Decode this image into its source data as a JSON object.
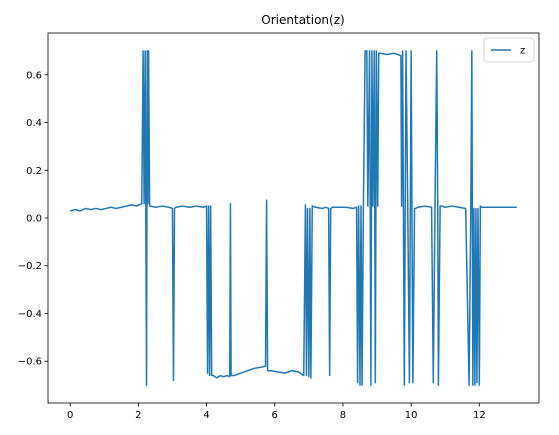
{
  "chart_data": {
    "type": "line",
    "title": "Orientation(z)",
    "xlabel": "",
    "ylabel": "",
    "xlim": [
      -0.65,
      13.75
    ],
    "ylim": [
      -0.775,
      0.775
    ],
    "xticks": [
      0,
      2,
      4,
      6,
      8,
      10,
      12
    ],
    "yticks": [
      -0.6,
      -0.4,
      -0.2,
      0.0,
      0.2,
      0.4,
      0.6
    ],
    "ytick_labels": [
      "−0.6",
      "−0.4",
      "−0.2",
      "0.0",
      "0.2",
      "0.4",
      "0.6"
    ],
    "grid": false,
    "legend_position": "top-right",
    "series": [
      {
        "name": "z",
        "color": "#1f77b4",
        "x": [
          0.0,
          0.15,
          0.3,
          0.45,
          0.6,
          0.75,
          0.9,
          1.05,
          1.2,
          1.35,
          1.5,
          1.65,
          1.8,
          1.95,
          2.1,
          2.14,
          2.17,
          2.2,
          2.24,
          2.26,
          2.28,
          2.3,
          2.33,
          2.36,
          2.5,
          2.7,
          2.9,
          3.0,
          3.03,
          3.06,
          3.1,
          3.3,
          3.5,
          3.7,
          3.9,
          4.0,
          4.03,
          4.06,
          4.09,
          4.12,
          4.15,
          4.2,
          4.3,
          4.4,
          4.5,
          4.6,
          4.68,
          4.7,
          4.72,
          4.8,
          5.0,
          5.2,
          5.4,
          5.6,
          5.73,
          5.76,
          5.79,
          5.9,
          6.1,
          6.3,
          6.5,
          6.7,
          6.85,
          6.9,
          6.93,
          6.96,
          7.0,
          7.03,
          7.06,
          7.1,
          7.2,
          7.4,
          7.5,
          7.58,
          7.61,
          7.64,
          7.7,
          7.9,
          8.1,
          8.3,
          8.4,
          8.43,
          8.46,
          8.5,
          8.53,
          8.56,
          8.6,
          8.65,
          8.7,
          8.73,
          8.78,
          8.82,
          8.85,
          8.88,
          8.92,
          8.95,
          8.98,
          9.02,
          9.05,
          9.1,
          9.3,
          9.5,
          9.7,
          9.72,
          9.75,
          9.8,
          9.85,
          9.9,
          9.95,
          10.0,
          10.05,
          10.1,
          10.13,
          10.2,
          10.4,
          10.6,
          10.65,
          10.7,
          10.75,
          10.78,
          10.8,
          10.85,
          10.9,
          11.0,
          11.2,
          11.4,
          11.6,
          11.7,
          11.75,
          11.78,
          11.81,
          11.84,
          11.87,
          11.9,
          11.93,
          11.96,
          12.0,
          12.03,
          12.06,
          12.2,
          12.5,
          12.8,
          13.1
        ],
        "values": [
          0.03,
          0.035,
          0.03,
          0.04,
          0.035,
          0.04,
          0.035,
          0.04,
          0.045,
          0.04,
          0.045,
          0.05,
          0.055,
          0.05,
          0.06,
          0.7,
          0.06,
          0.7,
          -0.7,
          0.7,
          0.06,
          0.7,
          0.05,
          0.05,
          0.045,
          0.05,
          0.045,
          0.04,
          -0.68,
          0.04,
          0.045,
          0.05,
          0.045,
          0.05,
          0.045,
          0.05,
          -0.65,
          0.05,
          -0.66,
          0.05,
          -0.66,
          -0.66,
          -0.67,
          -0.66,
          -0.665,
          -0.66,
          -0.665,
          0.06,
          -0.66,
          -0.66,
          -0.65,
          -0.64,
          -0.63,
          -0.625,
          -0.62,
          0.075,
          -0.64,
          -0.64,
          -0.645,
          -0.65,
          -0.64,
          -0.645,
          -0.66,
          0.055,
          -0.66,
          0.04,
          -0.665,
          0.04,
          -0.67,
          0.05,
          0.045,
          0.04,
          0.045,
          0.04,
          -0.66,
          0.04,
          0.045,
          0.045,
          0.045,
          0.04,
          0.045,
          -0.69,
          0.05,
          -0.7,
          0.05,
          -0.7,
          0.05,
          0.7,
          0.7,
          0.05,
          0.7,
          -0.7,
          0.7,
          0.05,
          0.7,
          -0.69,
          0.7,
          0.05,
          0.69,
          0.69,
          0.685,
          0.69,
          0.68,
          0.05,
          0.7,
          -0.7,
          0.7,
          0.05,
          -0.69,
          0.7,
          -0.69,
          0.04,
          0.04,
          0.045,
          0.05,
          0.045,
          -0.69,
          0.05,
          0.7,
          0.05,
          -0.7,
          0.05,
          0.05,
          0.045,
          0.05,
          0.045,
          0.04,
          -0.7,
          0.05,
          0.7,
          -0.7,
          0.04,
          -0.7,
          0.04,
          -0.69,
          0.04,
          -0.7,
          0.05,
          0.045,
          0.045,
          0.045,
          0.045,
          0.045
        ]
      }
    ]
  }
}
